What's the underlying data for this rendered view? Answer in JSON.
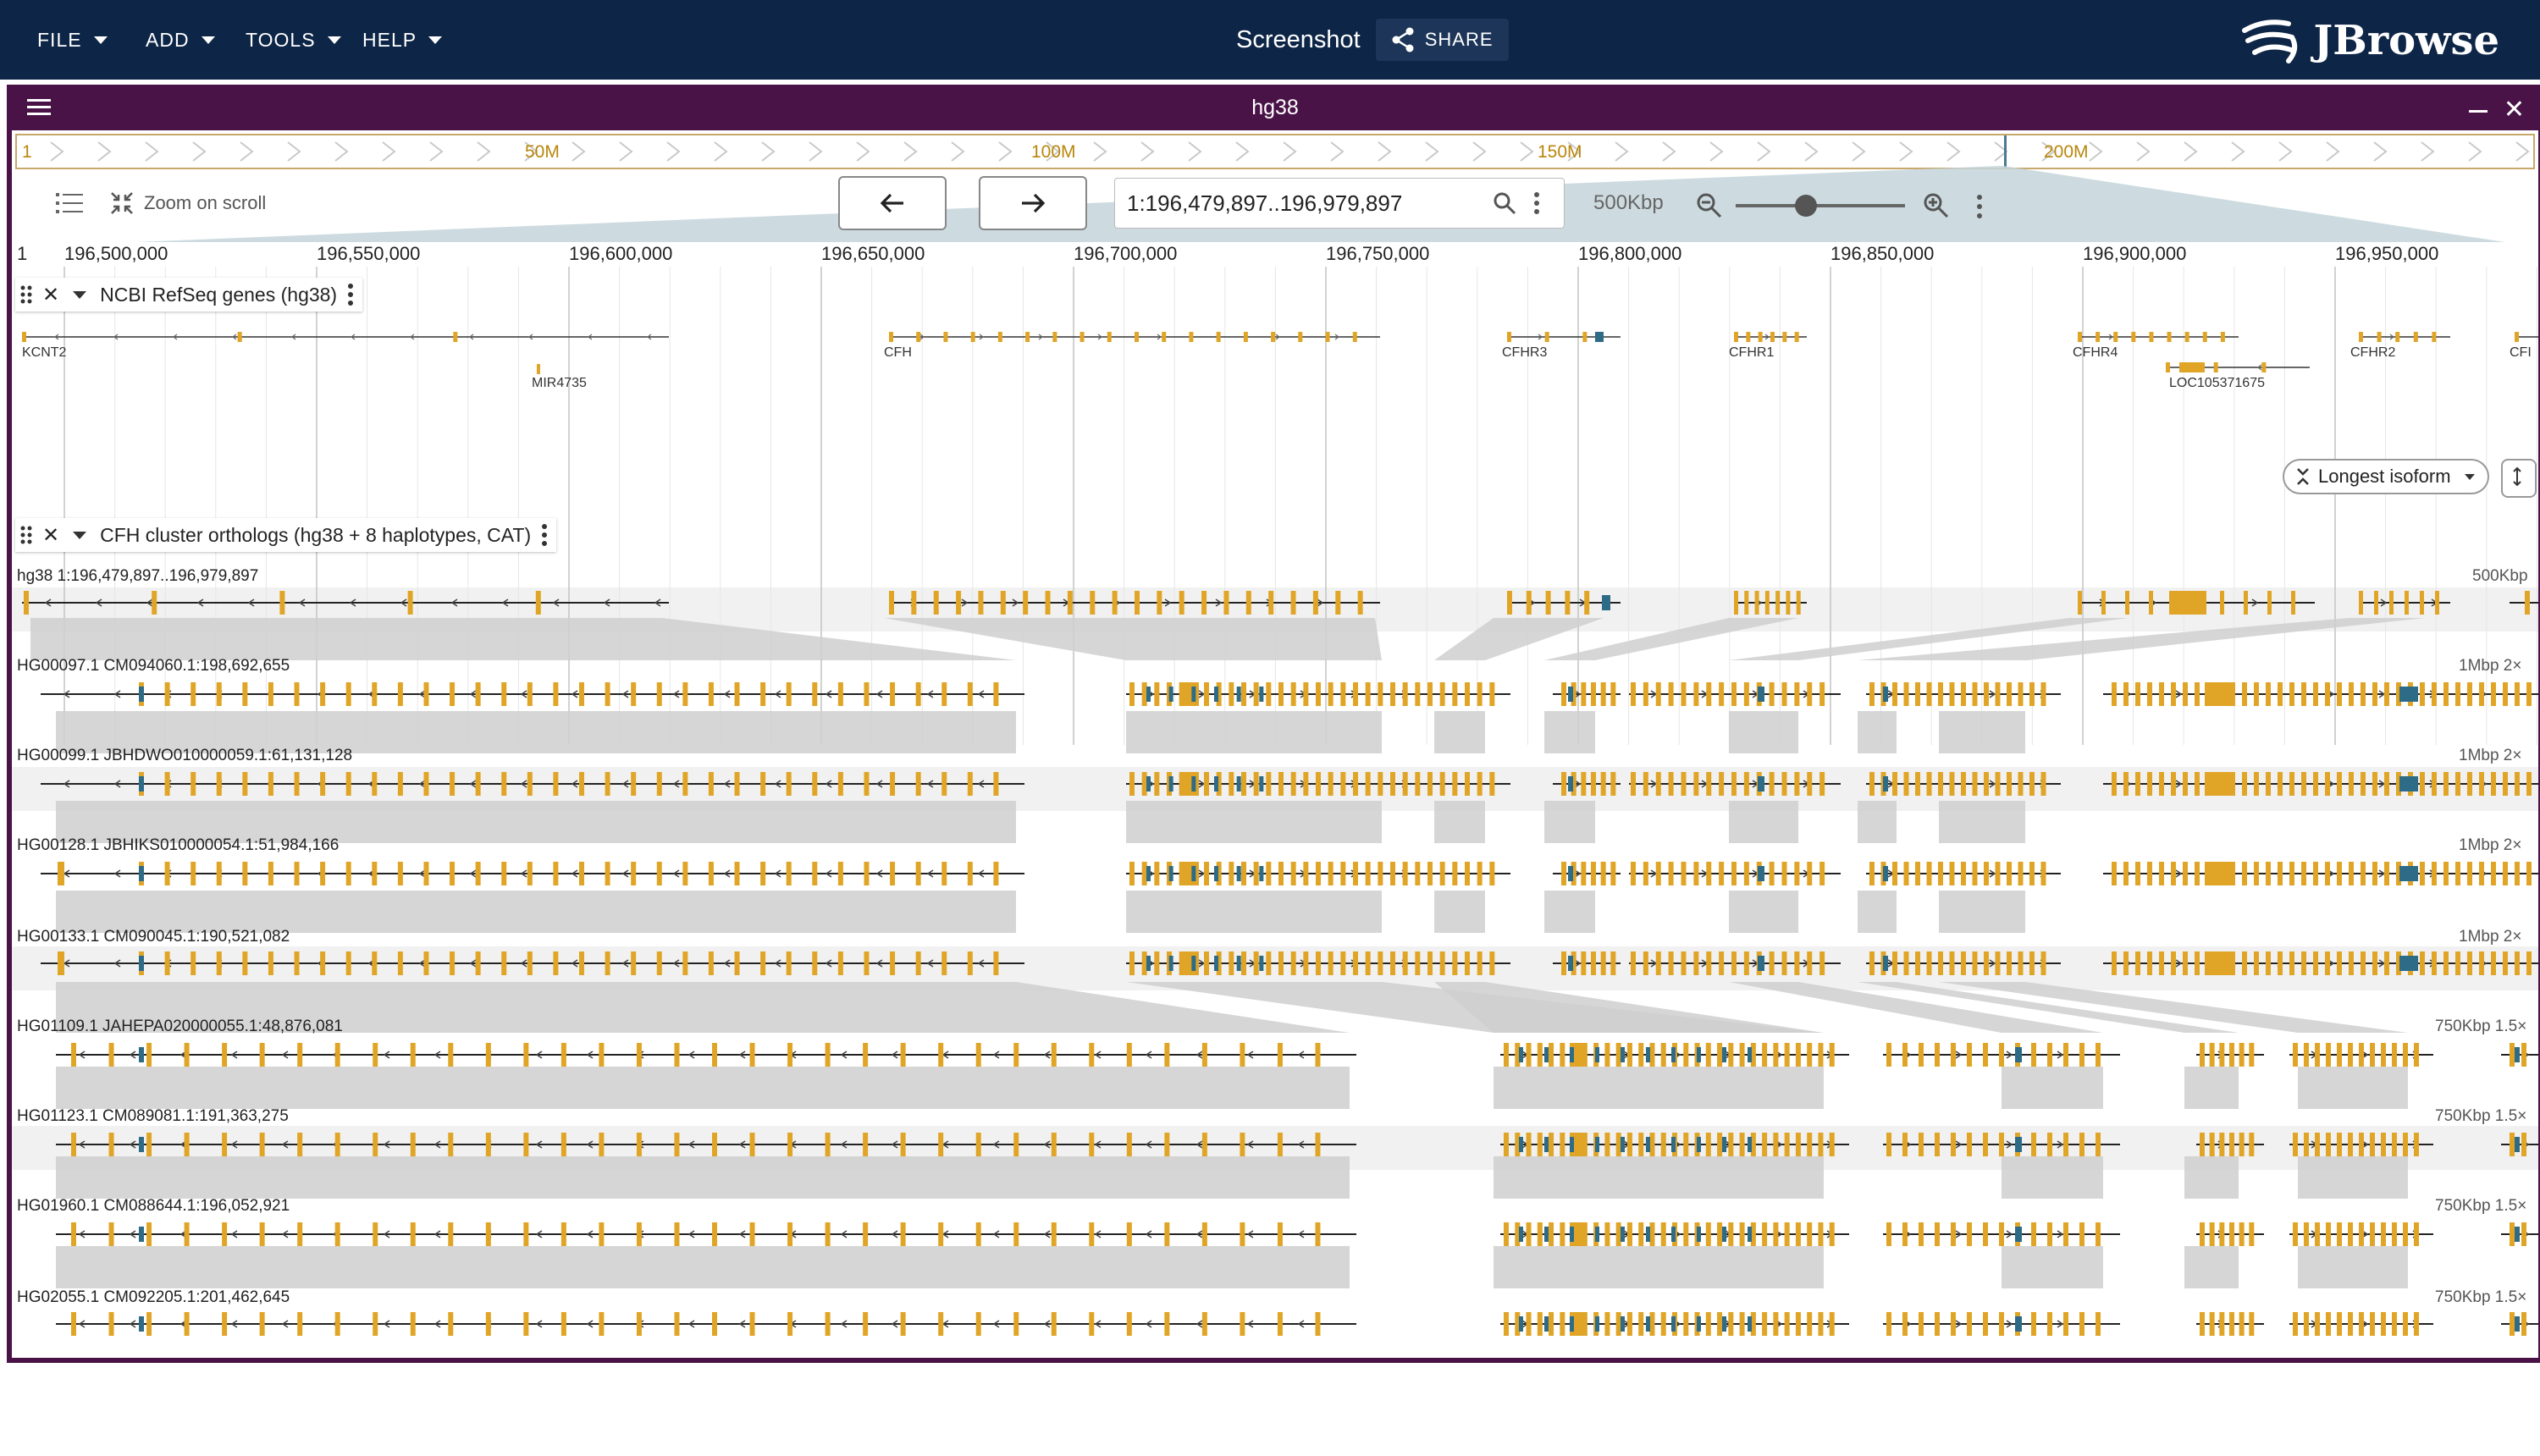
{
  "menu": {
    "file": "FILE",
    "add": "ADD",
    "tools": "TOOLS",
    "help": "HELP"
  },
  "header": {
    "title": "Screenshot",
    "share": "SHARE",
    "logo": "JBrowse"
  },
  "colors": {
    "topbar": "#0d2546",
    "view_border": "#4a1348",
    "exon": "#e0a526",
    "utr": "#2e6b87"
  },
  "view": {
    "title": "hg38",
    "overview_labels": [
      "1",
      "50M",
      "100M",
      "150M",
      "200M"
    ],
    "zoom_on_scroll": "Zoom on scroll",
    "location": "1:196,479,897..196,979,897",
    "bp_per_view": "500Kbp",
    "ruler_start": "1",
    "ruler_ticks": [
      "196,500,000",
      "196,550,000",
      "196,600,000",
      "196,650,000",
      "196,700,000",
      "196,750,000",
      "196,800,000",
      "196,850,000",
      "196,900,000",
      "196,950,000"
    ]
  },
  "tracks": {
    "refseq": {
      "label": "NCBI RefSeq genes (hg38)",
      "genes": [
        "KCNT2",
        "MIR4735",
        "CFH",
        "CFHR3",
        "CFHR1",
        "CFHR4",
        "LOC105371675",
        "CFHR2",
        "CFI"
      ],
      "isoform_button": "Longest isoform"
    },
    "orthologs": {
      "label": "CFH cluster orthologs (hg38 + 8 haplotypes, CAT)",
      "rows": [
        {
          "name": "hg38 1:196,479,897..196,979,897",
          "scale": "500Kbp"
        },
        {
          "name": "HG00097.1 CM094060.1:198,692,655",
          "scale": "1Mbp 2×"
        },
        {
          "name": "HG00099.1 JBHDWO010000059.1:61,131,128",
          "scale": "1Mbp 2×"
        },
        {
          "name": "HG00128.1 JBHIKS010000054.1:51,984,166",
          "scale": "1Mbp 2×"
        },
        {
          "name": "HG00133.1 CM090045.1:190,521,082",
          "scale": "1Mbp 2×"
        },
        {
          "name": "HG01109.1 JAHEPA020000055.1:48,876,081",
          "scale": "750Kbp 1.5×"
        },
        {
          "name": "HG01123.1 CM089081.1:191,363,275",
          "scale": "750Kbp 1.5×"
        },
        {
          "name": "HG01960.1 CM088644.1:196,052,921",
          "scale": "750Kbp 1.5×"
        },
        {
          "name": "HG02055.1 CM092205.1:201,462,645",
          "scale": "750Kbp 1.5×"
        }
      ]
    }
  }
}
